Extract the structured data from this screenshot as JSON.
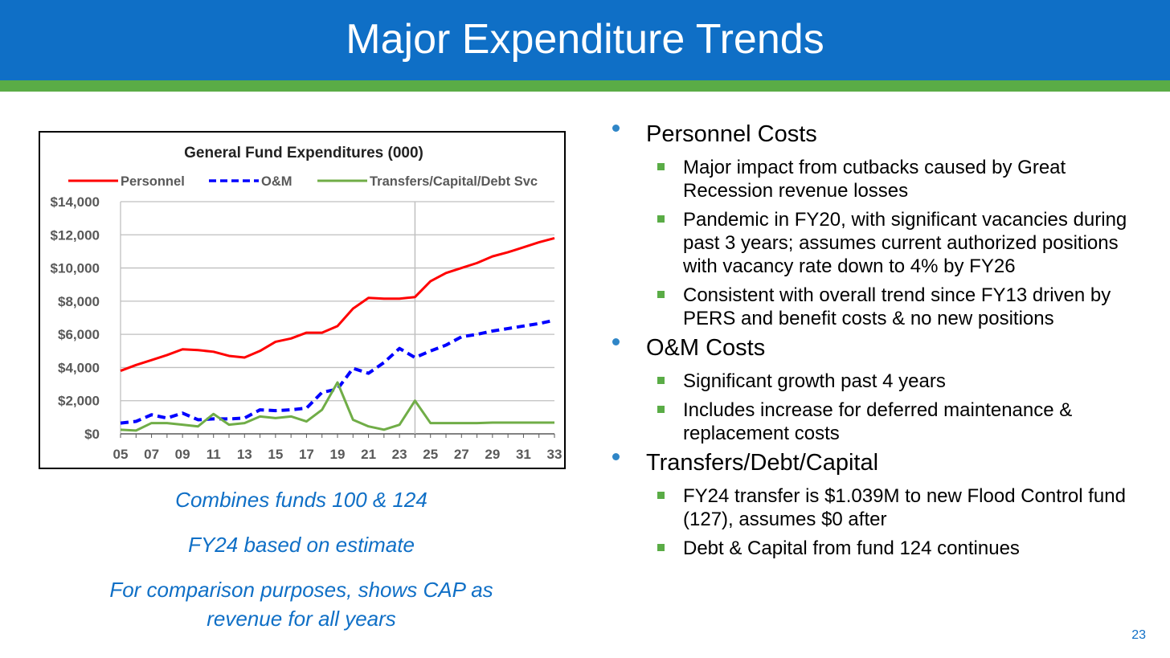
{
  "slide": {
    "title": "Major Expenditure Trends",
    "page_number": "23",
    "colors": {
      "header": "#0f6fc6",
      "stripe": "#5aac46",
      "note_text": "#0f6fc6"
    }
  },
  "notes": [
    {
      "text": "Combines funds 100 & 124"
    },
    {
      "text": "FY24 based on estimate"
    },
    {
      "text": "For comparison purposes, shows CAP as revenue for all years"
    }
  ],
  "bullets": {
    "personnel": {
      "heading": "Personnel Costs",
      "items": [
        "Major impact from cutbacks caused by Great Recession revenue losses",
        "Pandemic in FY20, with significant vacancies during past 3 years; assumes current authorized positions with vacancy rate down to 4% by FY26",
        "Consistent with overall trend since FY13 driven by PERS and benefit costs & no new positions"
      ]
    },
    "om": {
      "heading": "O&M Costs",
      "items": [
        "Significant growth past 4 years",
        "Includes increase for deferred maintenance & replacement costs"
      ]
    },
    "transfers": {
      "heading": "Transfers/Debt/Capital",
      "items": [
        "FY24 transfer is $1.039M to new Flood Control fund (127), assumes $0 after",
        "Debt & Capital from fund 124 continues"
      ]
    }
  },
  "chart_data": {
    "type": "line",
    "title": "General Fund Expenditures  (000)",
    "x": [
      5,
      6,
      7,
      8,
      9,
      10,
      11,
      12,
      13,
      14,
      15,
      16,
      17,
      18,
      19,
      20,
      21,
      22,
      23,
      24,
      25,
      26,
      27,
      28,
      29,
      30,
      31,
      32,
      33
    ],
    "x_tick_labels": [
      "05",
      "07",
      "09",
      "11",
      "13",
      "15",
      "17",
      "19",
      "21",
      "23",
      "25",
      "27",
      "29",
      "31",
      "33"
    ],
    "y_tick_labels": [
      "$0",
      "$2,000",
      "$4,000",
      "$6,000",
      "$8,000",
      "$10,000",
      "$12,000",
      "$14,000"
    ],
    "ylim": [
      0,
      14000
    ],
    "xlim": [
      5,
      33
    ],
    "grid": "horizontal",
    "vertical_marker_x": 24,
    "legend_position": "top",
    "series": [
      {
        "name": "Personnel",
        "color": "#ff0000",
        "dash": "solid",
        "values": [
          3800,
          4150,
          4450,
          4750,
          5100,
          5050,
          4950,
          4700,
          4600,
          5000,
          5550,
          5750,
          6100,
          6100,
          6500,
          7550,
          8200,
          8150,
          8150,
          8250,
          9200,
          9700,
          10000,
          10300,
          10700,
          10950,
          11250,
          11550,
          11800
        ]
      },
      {
        "name": "O&M",
        "color": "#0000ff",
        "dash": "dashed",
        "values": [
          650,
          750,
          1150,
          950,
          1250,
          850,
          900,
          900,
          950,
          1450,
          1400,
          1450,
          1550,
          2500,
          2700,
          3950,
          3650,
          4300,
          5150,
          4600,
          5000,
          5350,
          5850,
          6000,
          6200,
          6350,
          6500,
          6650,
          6850
        ]
      },
      {
        "name": "Transfers/Capital/Debt Svc",
        "color": "#70ad47",
        "dash": "solid",
        "values": [
          250,
          200,
          650,
          650,
          550,
          450,
          1200,
          550,
          650,
          1050,
          950,
          1050,
          750,
          1450,
          3100,
          850,
          450,
          250,
          550,
          2000,
          650,
          650,
          650,
          650,
          680,
          680,
          680,
          680,
          680
        ]
      }
    ]
  }
}
